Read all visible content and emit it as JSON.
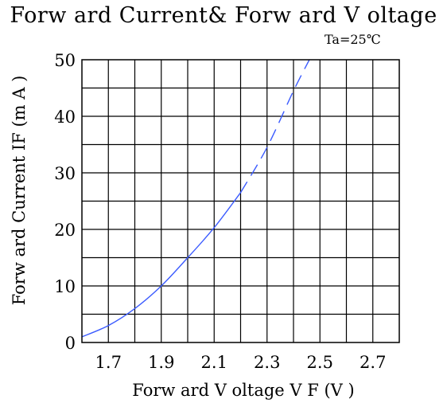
{
  "chart_data": {
    "type": "line",
    "title": "Forw ard Current&  Forw ard V oltage",
    "condition": "Ta=25℃",
    "xlabel": "Forw ard V oltage  V F (V )",
    "ylabel": "Forw ard Current IF (m A )",
    "xlim": [
      1.6,
      2.8
    ],
    "ylim": [
      0,
      50
    ],
    "x_tick_values": [
      1.7,
      1.9,
      2.1,
      2.3,
      2.5,
      2.7
    ],
    "x_tick_labels": [
      "1.7",
      "1.9",
      "2.1",
      "2.3",
      "2.5",
      "2.7"
    ],
    "y_tick_values": [
      0,
      10,
      20,
      30,
      40,
      50
    ],
    "y_tick_labels": [
      "0",
      "10",
      "20",
      "30",
      "40",
      "50"
    ],
    "x_grid_step": 0.1,
    "y_grid_step": 5,
    "grid": true,
    "line_color": "#3b5bff",
    "series": [
      {
        "style": "solid",
        "x": [
          1.6,
          1.7,
          1.8,
          1.9,
          2.0,
          2.1,
          2.2
        ],
        "y": [
          1.0,
          3.0,
          6.0,
          10.0,
          15.0,
          20.3,
          26.5
        ]
      },
      {
        "style": "dashed",
        "x": [
          2.2,
          2.3,
          2.4,
          2.46
        ],
        "y": [
          26.5,
          34.5,
          44.5,
          50.0
        ]
      }
    ]
  }
}
